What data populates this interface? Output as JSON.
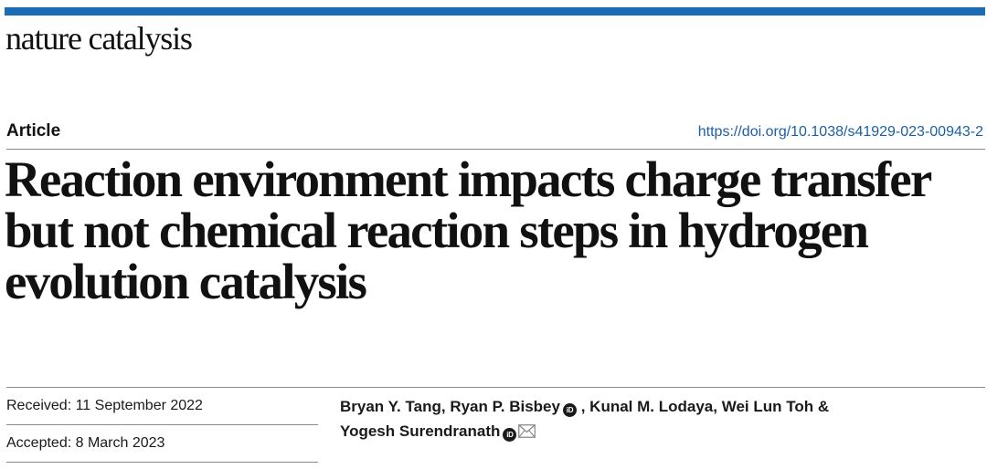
{
  "journal": {
    "name": "nature catalysis",
    "accent_color": "#1a6cb4"
  },
  "article": {
    "type": "Article",
    "doi": "https://doi.org/10.1038/s41929-023-00943-2",
    "title": "Reaction environment impacts charge transfer but not chemical reaction steps in hydrogen evolution catalysis"
  },
  "dates": {
    "received": "Received: 11 September 2022",
    "accepted": "Accepted: 8 March 2023"
  },
  "authors": [
    {
      "name": "Bryan Y. Tang",
      "orcid": false
    },
    {
      "name": "Ryan P. Bisbey",
      "orcid": true
    },
    {
      "name": "Kunal M. Lodaya",
      "orcid": false
    },
    {
      "name": "Wei Lun Toh",
      "orcid": false
    },
    {
      "name": "Yogesh Surendranath",
      "orcid": true,
      "corresponding": true
    }
  ],
  "author_separators": {
    "comma": ",",
    "ampersand": "&"
  },
  "icons": {
    "orcid": "orcid-icon",
    "orcid_text": "iD",
    "corresponding": "mail-icon"
  }
}
